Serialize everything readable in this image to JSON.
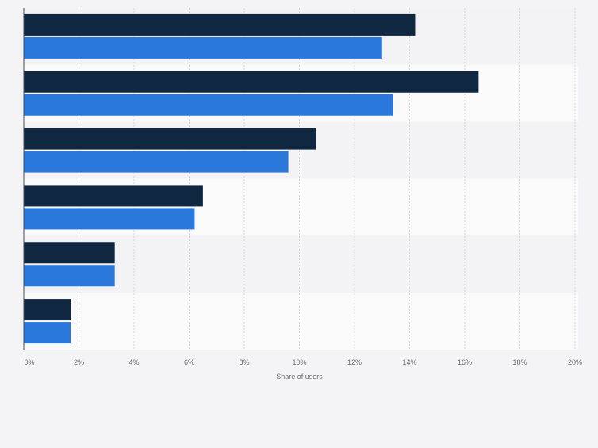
{
  "chart_data": {
    "type": "bar",
    "orientation": "horizontal",
    "categories": [
      "",
      "",
      "",
      "",
      "",
      ""
    ],
    "series": [
      {
        "values": [
          14.2,
          16.5,
          10.6,
          6.5,
          3.3,
          1.7
        ]
      },
      {
        "values": [
          13.0,
          13.4,
          9.6,
          6.2,
          3.3,
          1.7
        ]
      }
    ],
    "xlabel": "Share of users",
    "ylabel": "",
    "xlim": [
      0,
      20
    ],
    "x_ticks": [
      0,
      2,
      4,
      6,
      8,
      10,
      12,
      14,
      16,
      18,
      20
    ],
    "x_tick_labels": [
      "0%",
      "2%",
      "4%",
      "6%",
      "8%",
      "10%",
      "12%",
      "14%",
      "16%",
      "18%",
      "20%"
    ],
    "grid": "vertical dashed",
    "legend": "none",
    "colors": {
      "series_1": "#0f2741",
      "series_2": "#2a78dc",
      "band_odd": "#f3f3f5",
      "band_even": "#fafafb",
      "grid": "#d6d6d6",
      "axis": "#4a4a4a",
      "text": "#6b6b6b",
      "background": "#f4f4f6"
    }
  }
}
